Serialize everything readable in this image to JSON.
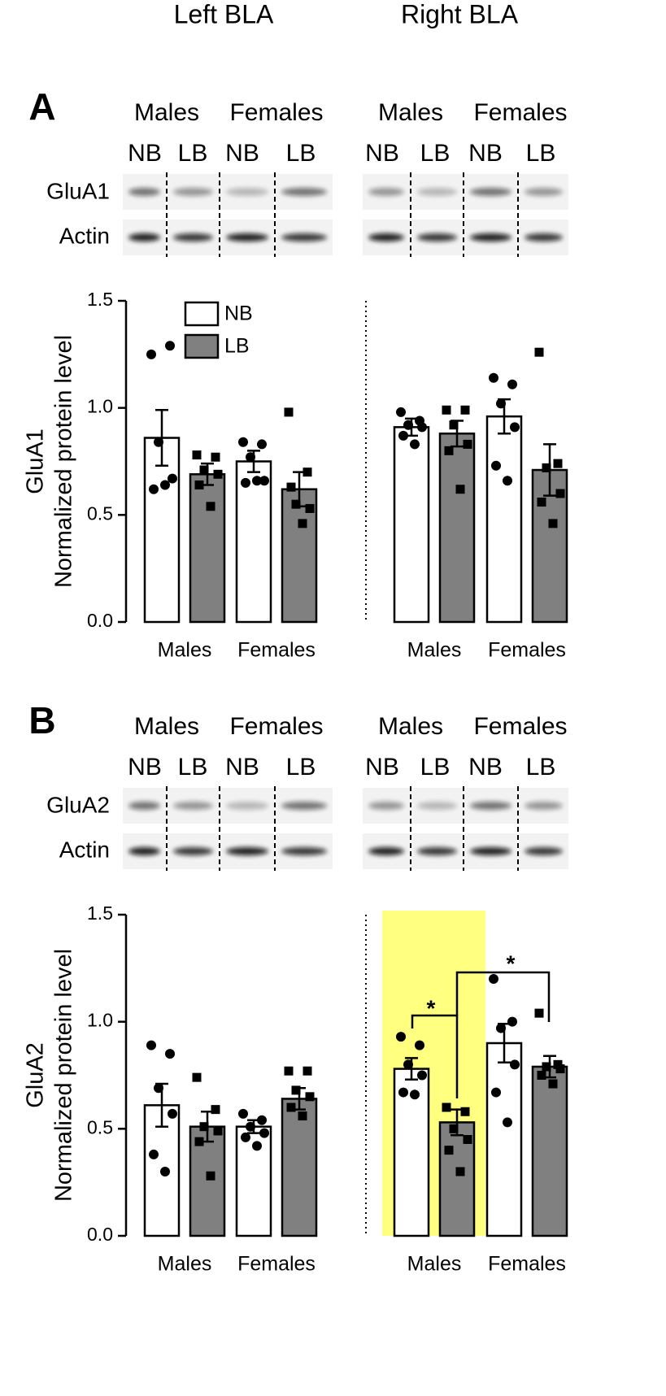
{
  "columns": [
    "Left BLA",
    "Right BLA"
  ],
  "panels": [
    {
      "label": "A",
      "blot": {
        "sexes": [
          "Males",
          "Females",
          "Males",
          "Females"
        ],
        "groups": [
          "NB",
          "LB",
          "NB",
          "LB",
          "NB",
          "LB",
          "NB",
          "LB"
        ],
        "rows": [
          "GluA1",
          "Actin"
        ]
      }
    },
    {
      "label": "B",
      "blot": {
        "sexes": [
          "Males",
          "Females",
          "Males",
          "Females"
        ],
        "groups": [
          "NB",
          "LB",
          "NB",
          "LB",
          "NB",
          "LB",
          "NB",
          "LB"
        ],
        "rows": [
          "GluA2",
          "Actin"
        ]
      }
    }
  ],
  "chart_data": [
    {
      "type": "bar",
      "row_label": "GluA1",
      "ylabel": "Normalized protein level",
      "categories": [
        "Males",
        "Females",
        "Males",
        "Females"
      ],
      "series": [
        {
          "name": "NB",
          "color": "#ffffff",
          "marker": "circle",
          "values": [
            0.86,
            0.75,
            0.91,
            0.96
          ],
          "errors": [
            0.13,
            0.05,
            0.04,
            0.08
          ],
          "points": [
            [
              1.25,
              1.29,
              0.84,
              0.67,
              0.62,
              0.64
            ],
            [
              0.84,
              0.83,
              0.77,
              0.66,
              0.65,
              0.66
            ],
            [
              0.98,
              0.94,
              0.92,
              0.91,
              0.87,
              0.83
            ],
            [
              1.14,
              1.11,
              1.02,
              0.91,
              0.73,
              0.66
            ]
          ]
        },
        {
          "name": "LB",
          "color": "#808080",
          "marker": "square",
          "values": [
            0.69,
            0.62,
            0.88,
            0.71
          ],
          "errors": [
            0.05,
            0.08,
            0.06,
            0.12
          ],
          "points": [
            [
              0.78,
              0.77,
              0.71,
              0.69,
              0.64,
              0.54
            ],
            [
              0.98,
              0.7,
              0.55,
              0.53,
              0.63,
              0.46
            ],
            [
              0.99,
              0.99,
              0.92,
              0.83,
              0.8,
              0.62
            ],
            [
              1.26,
              0.74,
              0.72,
              0.6,
              0.56,
              0.46
            ]
          ]
        }
      ],
      "ylim": [
        0,
        1.5
      ],
      "yticks": [
        {
          "value": 0,
          "label": "0.0"
        },
        0.5,
        {
          "value": 1,
          "label": "1.0"
        },
        1.5
      ],
      "legend": "upper left"
    },
    {
      "type": "bar",
      "row_label": "GluA2",
      "ylabel": "Normalized protein level",
      "categories": [
        "Males",
        "Females",
        "Males",
        "Females"
      ],
      "series": [
        {
          "color": "#ffffff",
          "marker": "circle",
          "values": [
            0.61,
            0.51,
            0.78,
            0.9
          ],
          "errors": [
            0.1,
            0.03,
            0.05,
            0.09
          ],
          "points": [
            [
              0.89,
              0.85,
              0.69,
              0.57,
              0.38,
              0.3
            ],
            [
              0.57,
              0.54,
              0.51,
              0.48,
              0.46,
              0.42
            ],
            [
              0.93,
              0.89,
              0.8,
              0.75,
              0.67,
              0.66
            ],
            [
              1.2,
              1.0,
              0.97,
              0.8,
              0.67,
              0.53
            ]
          ]
        },
        {
          "color": "#808080",
          "marker": "square",
          "values": [
            0.51,
            0.64,
            0.53,
            0.79
          ],
          "errors": [
            0.07,
            0.05,
            0.06,
            0.05
          ],
          "points": [
            [
              0.74,
              0.59,
              0.51,
              0.49,
              0.44,
              0.28
            ],
            [
              0.77,
              0.77,
              0.68,
              0.65,
              0.6,
              0.56
            ],
            [
              0.6,
              0.58,
              0.5,
              0.45,
              0.4,
              0.3
            ],
            [
              1.04,
              0.8,
              0.79,
              0.78,
              0.75,
              0.71
            ]
          ]
        }
      ],
      "ylim": [
        0,
        1.5
      ],
      "yticks": [
        {
          "value": 0,
          "label": "0.0"
        },
        0.5,
        {
          "value": 1,
          "label": "1.0"
        },
        1.5
      ],
      "highlight": {
        "category": 2,
        "color": "#ffff80"
      },
      "annotations": [
        "*",
        "*"
      ]
    }
  ]
}
